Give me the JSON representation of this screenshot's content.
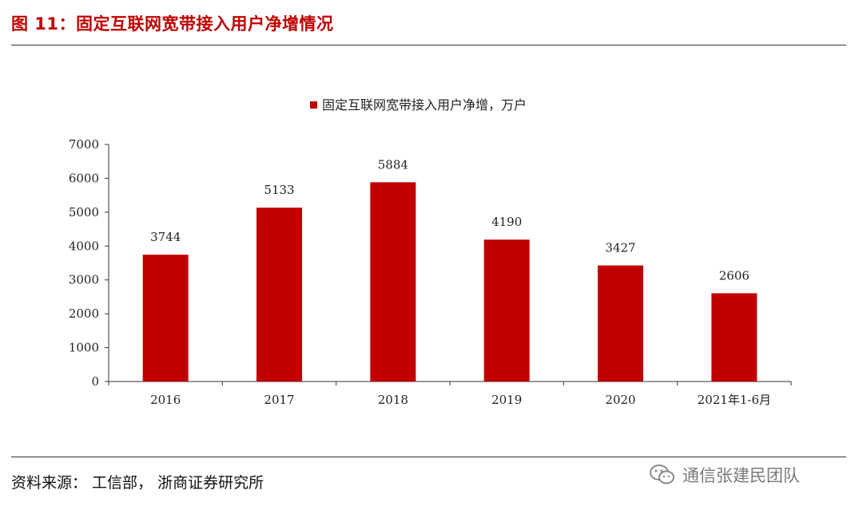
{
  "figure_title": "图  11：固定互联网宽带接入用户净增情况",
  "source_text": "资料来源：  工信部，  浙商证券研究所",
  "watermark_text": "通信张建民团队",
  "colors": {
    "bar": "#c00000",
    "title": "#c00000",
    "axis": "#333333"
  },
  "chart_data": {
    "type": "bar",
    "categories": [
      "2016",
      "2017",
      "2018",
      "2019",
      "2020",
      "2021年1-6月"
    ],
    "series": [
      {
        "name": "固定互联网宽带接入用户净增，万户",
        "values": [
          3744,
          5133,
          5884,
          4190,
          3427,
          2606
        ]
      }
    ],
    "data_labels": [
      "3744",
      "5133",
      "5884",
      "4190",
      "3427",
      "2606"
    ],
    "ylim": [
      0,
      7000
    ],
    "yticks": [
      0,
      1000,
      2000,
      3000,
      4000,
      5000,
      6000,
      7000
    ],
    "grid": false,
    "legend_position": "top-center"
  }
}
